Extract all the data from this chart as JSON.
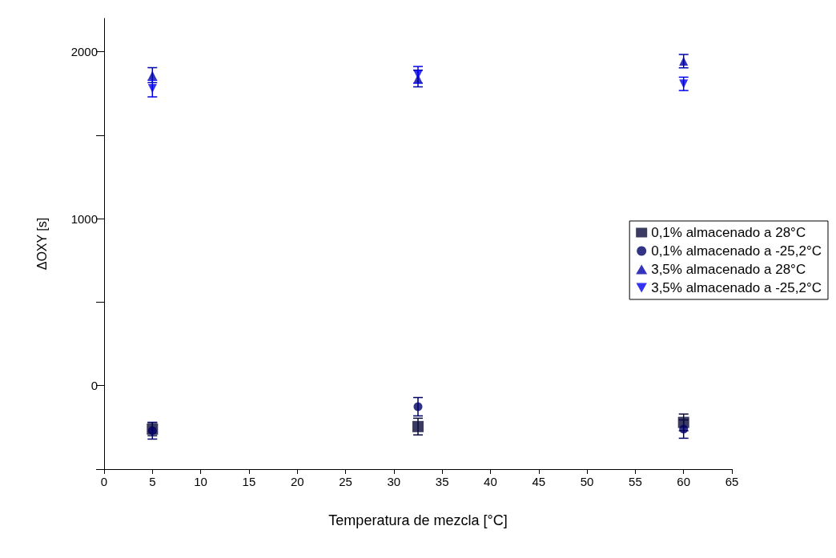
{
  "chart_data": {
    "type": "scatter",
    "xlabel": "Temperatura de mezcla [°C]",
    "ylabel": "ΔOXY [s]",
    "xlim": [
      0,
      65
    ],
    "xticks": [
      0,
      5,
      10,
      15,
      20,
      25,
      30,
      35,
      40,
      45,
      50,
      55,
      60,
      65
    ],
    "ylim": [
      -500,
      2200
    ],
    "yticks": [
      {
        "value": -500,
        "label": null
      },
      0,
      {
        "value": 500,
        "label": null
      },
      1000,
      {
        "value": 1500,
        "label": null
      },
      2000
    ],
    "grid": false,
    "legend": "right",
    "series": [
      {
        "name": "0,1% almacenado a 28°C",
        "color": "#0a0a3a",
        "marker": "square",
        "x": [
          5,
          32.5,
          60
        ],
        "values": [
          -260,
          -245,
          -220
        ],
        "errors": [
          40,
          50,
          50
        ]
      },
      {
        "name": "0,1% almacenado a -25,2°C",
        "color": "#000066",
        "marker": "circle",
        "x": [
          5,
          32.5,
          60
        ],
        "values": [
          -270,
          -126,
          -260
        ],
        "errors": [
          50,
          55,
          55
        ]
      },
      {
        "name": "3,5% almacenado a 28°C",
        "color": "#0000aa",
        "marker": "triangle",
        "x": [
          5,
          32.5,
          60
        ],
        "values": [
          1860,
          1840,
          1944
        ],
        "errors": [
          45,
          50,
          40
        ]
      },
      {
        "name": "3,5% almacenado a -25,2°C",
        "color": "#0000ee",
        "marker": "triangle-down",
        "x": [
          5,
          32.5,
          60
        ],
        "values": [
          1780,
          1862,
          1808
        ],
        "errors": [
          50,
          50,
          40
        ]
      }
    ]
  }
}
